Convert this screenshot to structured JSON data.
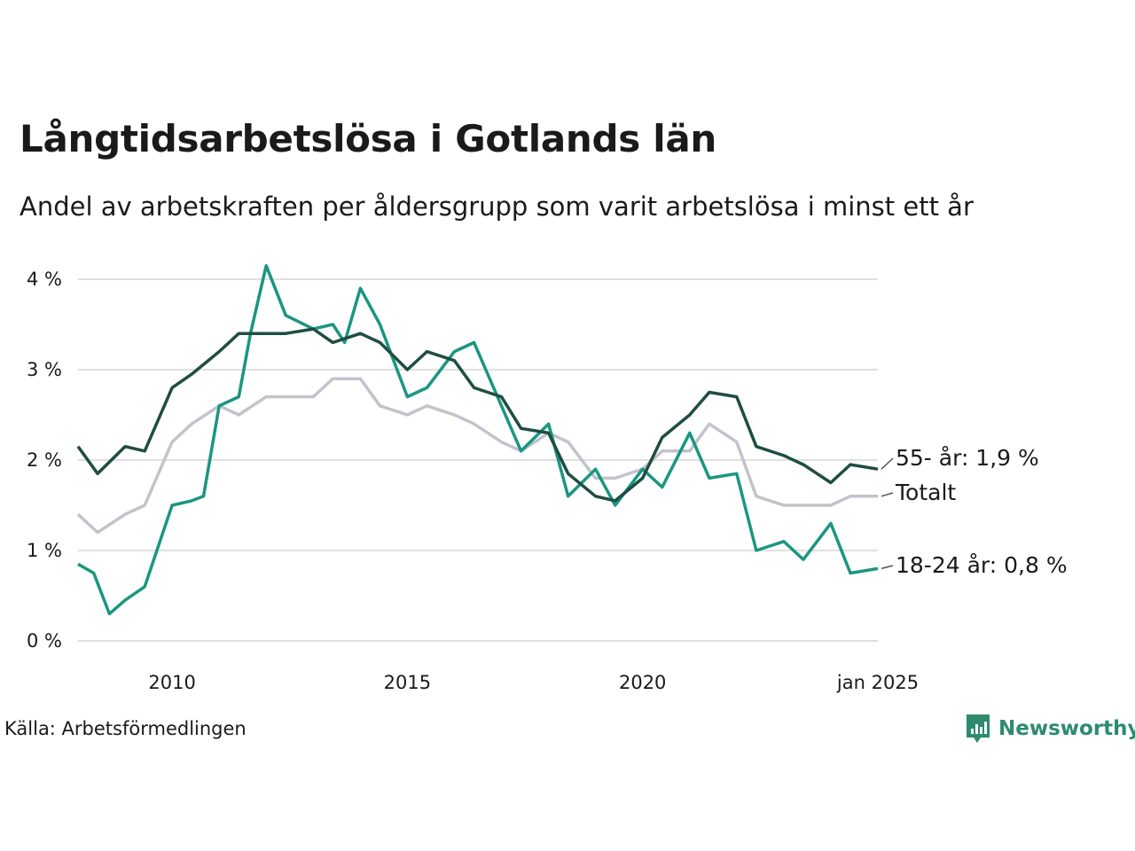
{
  "title": "Långtidsarbetslösa i Gotlands län",
  "subtitle": "Andel av arbetskraften per åldersgrupp som varit arbetslösa i minst ett år",
  "source": "Källa: Arbetsförmedlingen",
  "brand": {
    "name": "Newsworthy",
    "color": "#2e8b6e",
    "icon": "bar-chart-bubble-icon"
  },
  "chart_data": {
    "type": "line",
    "x_range": [
      "2008-01",
      "2025-01"
    ],
    "ylim": [
      0,
      4
    ],
    "y_ticks": [
      0,
      1,
      2,
      3,
      4
    ],
    "y_tick_labels": [
      "0 %",
      "1 %",
      "2 %",
      "3 %",
      "4 %"
    ],
    "x_ticks": [
      2010,
      2015,
      2020,
      2025
    ],
    "x_tick_labels": [
      "2010",
      "2015",
      "2020",
      "jan 2025"
    ],
    "grid": "horizontal",
    "legend": "end-of-line labels",
    "series": [
      {
        "name": "Totalt",
        "label": "Totalt",
        "color": "#c4c2cc",
        "x": [
          "2008-01",
          "2008-06",
          "2009-01",
          "2009-06",
          "2010-01",
          "2010-06",
          "2011-01",
          "2011-06",
          "2012-01",
          "2012-06",
          "2013-01",
          "2013-06",
          "2014-01",
          "2014-06",
          "2015-01",
          "2015-06",
          "2016-01",
          "2016-06",
          "2017-01",
          "2017-06",
          "2018-01",
          "2018-06",
          "2019-01",
          "2019-06",
          "2020-01",
          "2020-06",
          "2021-01",
          "2021-06",
          "2022-01",
          "2022-06",
          "2023-01",
          "2023-06",
          "2024-01",
          "2024-06",
          "2025-01"
        ],
        "values": [
          1.4,
          1.2,
          1.4,
          1.5,
          2.2,
          2.4,
          2.6,
          2.5,
          2.7,
          2.7,
          2.7,
          2.9,
          2.9,
          2.6,
          2.5,
          2.6,
          2.5,
          2.4,
          2.2,
          2.1,
          2.3,
          2.2,
          1.8,
          1.8,
          1.9,
          2.1,
          2.1,
          2.4,
          2.2,
          1.6,
          1.5,
          1.5,
          1.5,
          1.6,
          1.6
        ]
      },
      {
        "name": "18-24 år",
        "label": "18-24 år: 0,8 %",
        "color": "#1a9680",
        "x": [
          "2008-01",
          "2008-05",
          "2008-09",
          "2009-01",
          "2009-06",
          "2010-01",
          "2010-06",
          "2010-09",
          "2011-01",
          "2011-06",
          "2011-09",
          "2012-01",
          "2012-06",
          "2013-01",
          "2013-06",
          "2013-09",
          "2014-01",
          "2014-06",
          "2015-01",
          "2015-06",
          "2016-01",
          "2016-06",
          "2017-01",
          "2017-06",
          "2018-01",
          "2018-06",
          "2019-01",
          "2019-06",
          "2020-01",
          "2020-06",
          "2021-01",
          "2021-06",
          "2022-01",
          "2022-06",
          "2023-01",
          "2023-06",
          "2024-01",
          "2024-06",
          "2025-01"
        ],
        "values": [
          0.85,
          0.75,
          0.3,
          0.45,
          0.6,
          1.5,
          1.55,
          1.6,
          2.6,
          2.7,
          3.4,
          4.15,
          3.6,
          3.45,
          3.5,
          3.3,
          3.9,
          3.5,
          2.7,
          2.8,
          3.2,
          3.3,
          2.6,
          2.1,
          2.4,
          1.6,
          1.9,
          1.5,
          1.9,
          1.7,
          2.3,
          1.8,
          1.85,
          1.0,
          1.1,
          0.9,
          1.3,
          0.75,
          0.8
        ]
      },
      {
        "name": "55- år",
        "label": "55- år: 1,9 %",
        "color": "#1f4d42",
        "x": [
          "2008-01",
          "2008-06",
          "2009-01",
          "2009-06",
          "2010-01",
          "2010-06",
          "2011-01",
          "2011-06",
          "2012-01",
          "2012-06",
          "2013-01",
          "2013-06",
          "2014-01",
          "2014-06",
          "2015-01",
          "2015-06",
          "2016-01",
          "2016-06",
          "2017-01",
          "2017-06",
          "2018-01",
          "2018-06",
          "2019-01",
          "2019-06",
          "2020-01",
          "2020-06",
          "2021-01",
          "2021-06",
          "2022-01",
          "2022-06",
          "2023-01",
          "2023-06",
          "2024-01",
          "2024-06",
          "2025-01"
        ],
        "values": [
          2.15,
          1.85,
          2.15,
          2.1,
          2.8,
          2.95,
          3.2,
          3.4,
          3.4,
          3.4,
          3.45,
          3.3,
          3.4,
          3.3,
          3.0,
          3.2,
          3.1,
          2.8,
          2.7,
          2.35,
          2.3,
          1.85,
          1.6,
          1.55,
          1.8,
          2.25,
          2.5,
          2.75,
          2.7,
          2.15,
          2.05,
          1.95,
          1.75,
          1.95,
          1.9
        ]
      }
    ]
  }
}
